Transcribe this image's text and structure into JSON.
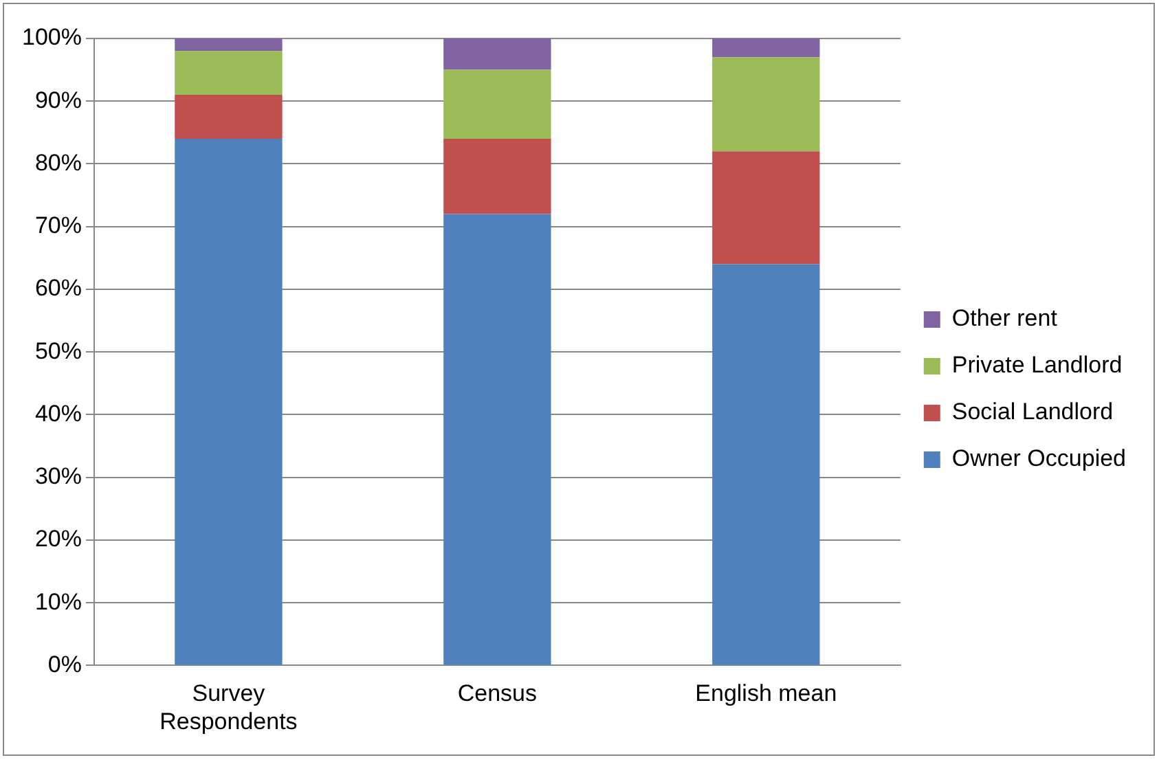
{
  "chart_data": {
    "type": "bar",
    "stacked": true,
    "categories": [
      "Survey Respondents",
      "Census",
      "English mean"
    ],
    "series": [
      {
        "name": "Owner Occupied",
        "color": "#4f81bd",
        "values": [
          84,
          72,
          64
        ]
      },
      {
        "name": "Social Landlord",
        "color": "#c0504d",
        "values": [
          7,
          12,
          18
        ]
      },
      {
        "name": "Private Landlord",
        "color": "#9bbb59",
        "values": [
          7,
          11,
          15
        ]
      },
      {
        "name": "Other rent",
        "color": "#8064a2",
        "values": [
          2,
          5,
          3
        ]
      }
    ],
    "ylim": [
      0,
      100
    ],
    "yticks": [
      {
        "value": 0,
        "label": "0%"
      },
      {
        "value": 10,
        "label": "10%"
      },
      {
        "value": 20,
        "label": "20%"
      },
      {
        "value": 30,
        "label": "30%"
      },
      {
        "value": 40,
        "label": "40%"
      },
      {
        "value": 50,
        "label": "50%"
      },
      {
        "value": 60,
        "label": "60%"
      },
      {
        "value": 70,
        "label": "70%"
      },
      {
        "value": 80,
        "label": "80%"
      },
      {
        "value": 90,
        "label": "90%"
      },
      {
        "value": 100,
        "label": "100%"
      }
    ],
    "grid": "y",
    "legend": "right"
  }
}
